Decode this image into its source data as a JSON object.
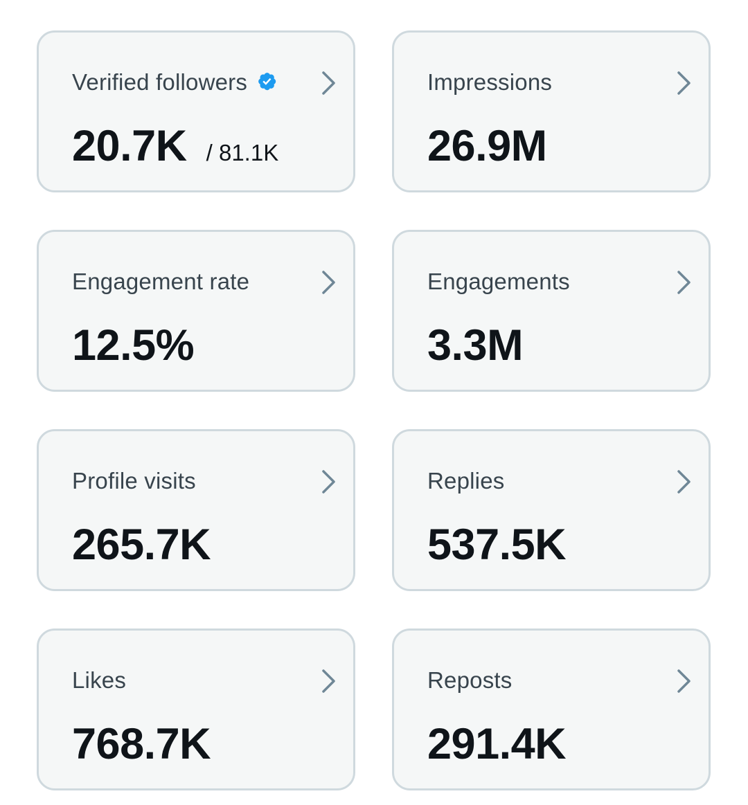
{
  "cards": [
    {
      "label": "Verified followers",
      "value": "20.7K",
      "secondary": "/ 81.1K",
      "icon": "verified-badge-icon"
    },
    {
      "label": "Impressions",
      "value": "26.9M"
    },
    {
      "label": "Engagement rate",
      "value": "12.5%"
    },
    {
      "label": "Engagements",
      "value": "3.3M"
    },
    {
      "label": "Profile visits",
      "value": "265.7K"
    },
    {
      "label": "Replies",
      "value": "537.5K"
    },
    {
      "label": "Likes",
      "value": "768.7K"
    },
    {
      "label": "Reposts",
      "value": "291.4K"
    }
  ],
  "colors": {
    "card_background": "#f5f7f7",
    "card_border": "#cfd9de",
    "label_text": "#38444d",
    "value_text": "#0f1419",
    "chevron": "#6f8796",
    "verified_badge": "#1d9bf0"
  }
}
